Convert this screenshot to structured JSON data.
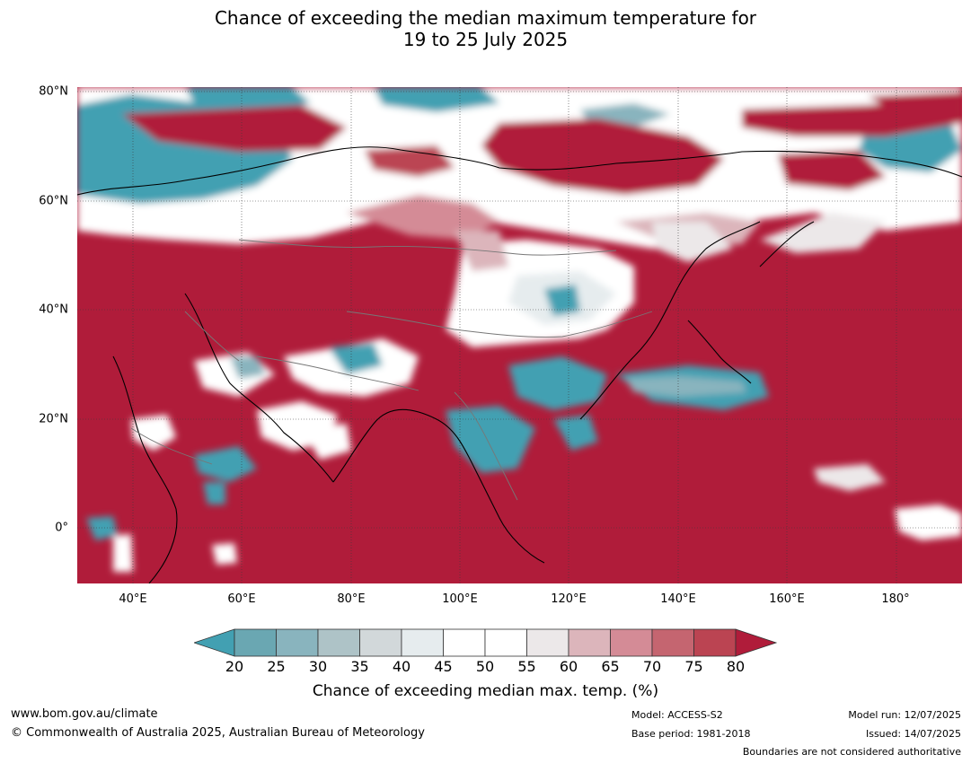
{
  "title_line1": "Chance of exceeding the median maximum temperature for",
  "title_line2": "19 to 25 July 2025",
  "latitude_labels": [
    "80°N",
    "60°N",
    "40°N",
    "20°N",
    "0°"
  ],
  "longitude_labels": [
    "40°E",
    "60°E",
    "80°E",
    "100°E",
    "120°E",
    "140°E",
    "160°E",
    "180°"
  ],
  "colorbar": {
    "ticks": [
      "20",
      "25",
      "30",
      "35",
      "40",
      "45",
      "50",
      "55",
      "60",
      "65",
      "70",
      "75",
      "80"
    ],
    "colors": [
      "#42a0b2",
      "#6aa7b2",
      "#89b4be",
      "#aec3c7",
      "#d2d8da",
      "#e6ecee",
      "#ffffff",
      "#ffffff",
      "#ece8e9",
      "#dcb5bb",
      "#d48b96",
      "#c56570",
      "#bb4452",
      "#b01c3a"
    ],
    "label": "Chance of exceeding median max. temp. (%)"
  },
  "footer": {
    "website": "www.bom.gov.au/climate",
    "copyright": "© Commonwealth of Australia 2025, Australian Bureau of Meteorology",
    "model": "Model: ACCESS-S2",
    "base_period": "Base period: 1981-2018",
    "model_run": "Model run: 12/07/2025",
    "issued": "Issued: 14/07/2025",
    "disclaimer": "Boundaries are not considered authoritative"
  }
}
